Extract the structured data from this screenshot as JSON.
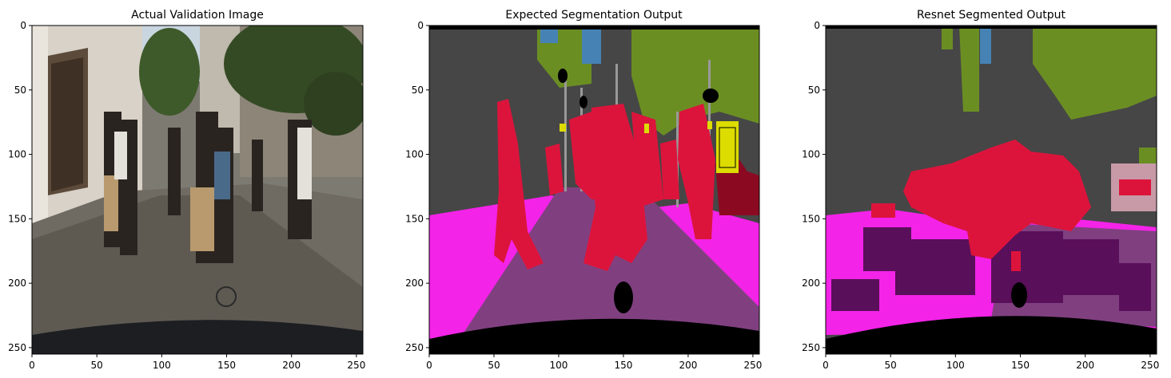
{
  "chart_data": [
    {
      "type": "image",
      "title": "Actual Validation Image",
      "xlim": [
        0,
        255
      ],
      "ylim": [
        255,
        0
      ],
      "x_ticks": [
        0,
        50,
        100,
        150,
        200,
        250
      ],
      "y_ticks": [
        0,
        50,
        100,
        150,
        200,
        250
      ],
      "content": "street photo"
    },
    {
      "type": "image",
      "title": "Expected Segmentation Output",
      "xlim": [
        0,
        255
      ],
      "ylim": [
        255,
        0
      ],
      "x_ticks": [
        0,
        50,
        100,
        150,
        200,
        250
      ],
      "y_ticks": [
        0,
        50,
        100,
        150,
        200,
        250
      ],
      "content": "segmentation mask"
    },
    {
      "type": "image",
      "title": "Resnet Segmented Output",
      "xlim": [
        0,
        255
      ],
      "ylim": [
        255,
        0
      ],
      "x_ticks": [
        0,
        50,
        100,
        150,
        200,
        250
      ],
      "y_ticks": [
        0,
        50,
        100,
        150,
        200,
        250
      ],
      "content": "predicted mask"
    }
  ],
  "colors": {
    "road": "#804080",
    "sidewalk": "#f423e8",
    "building": "#464646",
    "vegetation": "#6b8e23",
    "sky": "#4682b4",
    "person": "#dc143c",
    "car": "#8b0a22",
    "pole": "#999999",
    "traffic_sign": "#dcdc00",
    "void": "#000000",
    "pred_dark_road": "#5a0f5a",
    "pred_pink": "#c89aa8"
  }
}
